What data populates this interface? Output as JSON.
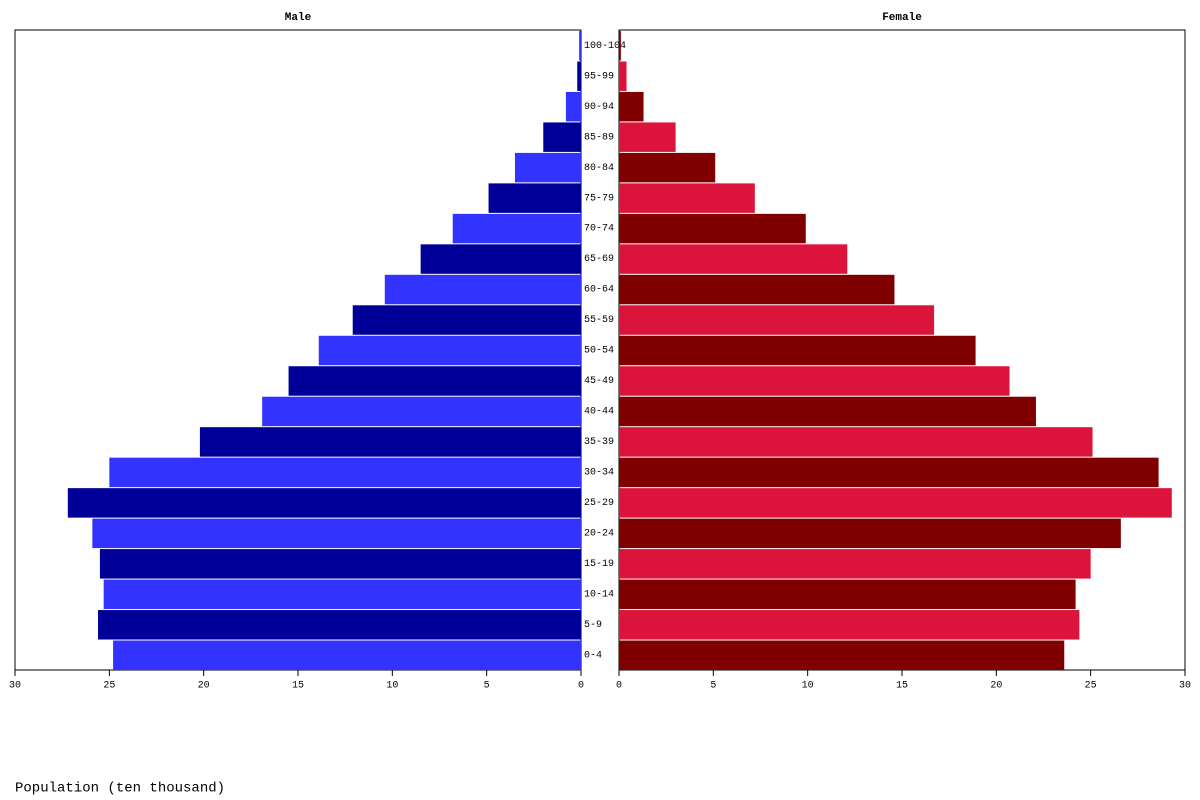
{
  "chart_data": {
    "type": "pyramid",
    "x_label": "Population (ten thousand)",
    "categories": [
      "0-4",
      "5-9",
      "10-14",
      "15-19",
      "20-24",
      "25-29",
      "30-34",
      "35-39",
      "40-44",
      "45-49",
      "50-54",
      "55-59",
      "60-64",
      "65-69",
      "70-74",
      "75-79",
      "80-84",
      "85-89",
      "90-94",
      "95-99",
      "100-104"
    ],
    "series": [
      {
        "name": "Male",
        "colors": [
          "#3333ff",
          "#000099"
        ],
        "xlim": [
          30,
          0
        ],
        "xticks": [
          30,
          25,
          20,
          15,
          10,
          5,
          0
        ],
        "values": [
          24.8,
          25.6,
          25.3,
          25.5,
          25.9,
          27.2,
          25.0,
          20.2,
          16.9,
          15.5,
          13.9,
          12.1,
          10.4,
          8.5,
          6.8,
          4.9,
          3.5,
          2.0,
          0.8,
          0.2,
          0.1
        ]
      },
      {
        "name": "Female",
        "colors": [
          "#800000",
          "#dc143c"
        ],
        "xlim": [
          0,
          30
        ],
        "xticks": [
          0,
          5,
          10,
          15,
          20,
          25,
          30
        ],
        "values": [
          23.6,
          24.4,
          24.2,
          25.0,
          26.6,
          29.3,
          28.6,
          25.1,
          22.1,
          20.7,
          18.9,
          16.7,
          14.6,
          12.1,
          9.9,
          7.2,
          5.1,
          3.0,
          1.3,
          0.4,
          0.1
        ]
      }
    ]
  }
}
